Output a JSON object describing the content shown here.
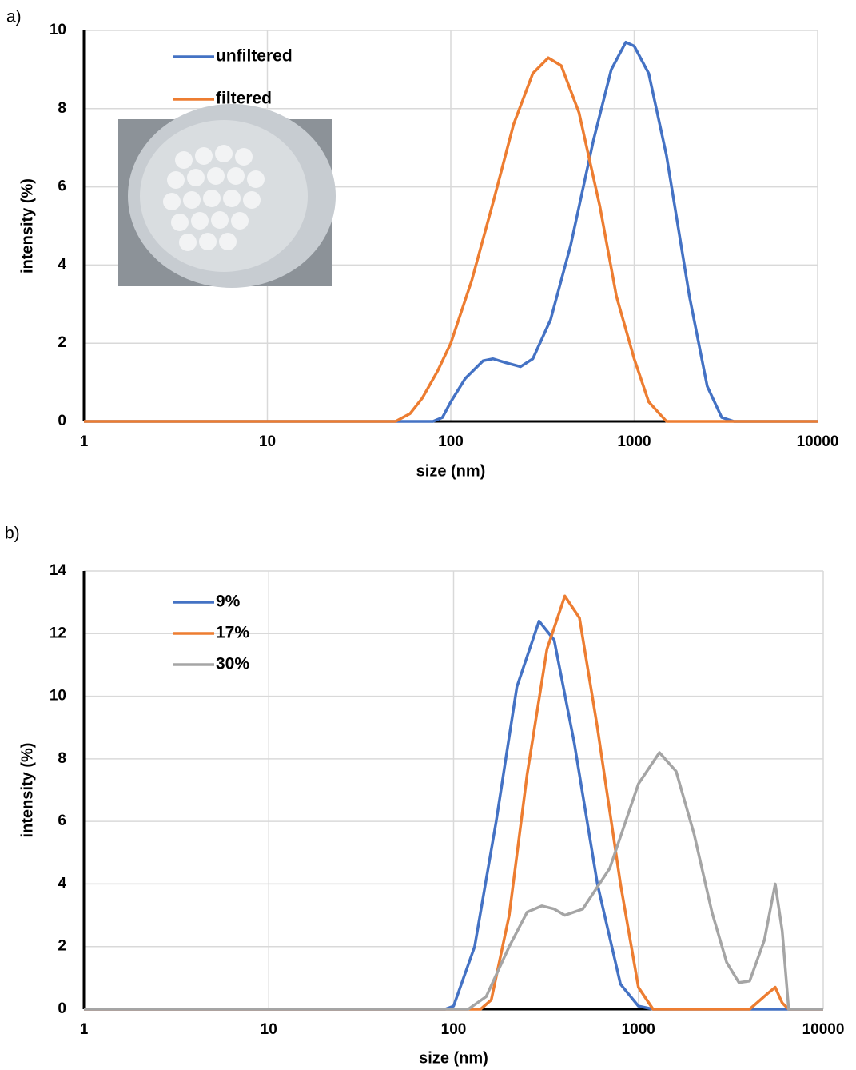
{
  "chart_data": [
    {
      "type": "line",
      "panel": "a)",
      "xlabel": "size (nm)",
      "ylabel": "intensity (%)",
      "xscale": "log",
      "grid": true,
      "legend": "upper left",
      "xlim": [
        1,
        10000
      ],
      "xticks": [
        1,
        10,
        100,
        1000,
        10000
      ],
      "ylim": [
        0,
        10
      ],
      "yticks": [
        0,
        2,
        4,
        6,
        8,
        10
      ],
      "series": [
        {
          "name": "unfiltered",
          "color": "#4472c4",
          "x": [
            1,
            80,
            90,
            100,
            120,
            150,
            170,
            200,
            240,
            280,
            350,
            450,
            600,
            750,
            900,
            1000,
            1200,
            1500,
            2000,
            2500,
            3000,
            3500,
            10000
          ],
          "values": [
            0,
            0,
            0.1,
            0.5,
            1.1,
            1.55,
            1.6,
            1.5,
            1.4,
            1.6,
            2.6,
            4.5,
            7.2,
            9.0,
            9.7,
            9.6,
            8.9,
            6.8,
            3.2,
            0.9,
            0.1,
            0,
            0
          ]
        },
        {
          "name": "filtered",
          "color": "#ed7d31",
          "x": [
            1,
            50,
            60,
            70,
            85,
            100,
            130,
            170,
            220,
            280,
            340,
            400,
            500,
            650,
            800,
            1000,
            1200,
            1500,
            10000
          ],
          "values": [
            0,
            0,
            0.2,
            0.6,
            1.3,
            2.0,
            3.6,
            5.6,
            7.6,
            8.9,
            9.3,
            9.1,
            7.9,
            5.5,
            3.2,
            1.6,
            0.5,
            0,
            0
          ]
        }
      ]
    },
    {
      "type": "line",
      "panel": "b)",
      "xlabel": "size (nm)",
      "ylabel": "intensity (%)",
      "xscale": "log",
      "grid": true,
      "legend": "upper left",
      "xlim": [
        1,
        10000
      ],
      "xticks": [
        1,
        10,
        100,
        1000,
        10000
      ],
      "ylim": [
        0,
        14
      ],
      "yticks": [
        0,
        2,
        4,
        6,
        8,
        10,
        12,
        14
      ],
      "series": [
        {
          "name": "9%",
          "color": "#4472c4",
          "x": [
            1,
            90,
            100,
            130,
            170,
            220,
            290,
            350,
            450,
            600,
            800,
            1000,
            1200,
            10000
          ],
          "values": [
            0,
            0,
            0.1,
            2,
            6,
            10.3,
            12.4,
            11.8,
            8.5,
            4,
            0.8,
            0.1,
            0,
            0
          ]
        },
        {
          "name": "17%",
          "color": "#ed7d31",
          "x": [
            1,
            140,
            160,
            200,
            250,
            320,
            400,
            480,
            600,
            800,
            1000,
            1200,
            4000,
            5000,
            5500,
            6000,
            6500,
            10000
          ],
          "values": [
            0,
            0,
            0.3,
            3,
            7.5,
            11.5,
            13.2,
            12.5,
            9,
            4,
            0.7,
            0,
            0,
            0.5,
            0.7,
            0.2,
            0,
            0
          ]
        },
        {
          "name": "30%",
          "color": "#a5a5a5",
          "x": [
            1,
            120,
            150,
            200,
            250,
            300,
            350,
            400,
            500,
            700,
            1000,
            1300,
            1600,
            2000,
            2500,
            3000,
            3500,
            4000,
            4800,
            5500,
            6000,
            6500,
            10000
          ],
          "values": [
            0,
            0,
            0.4,
            2,
            3.1,
            3.3,
            3.2,
            3,
            3.2,
            4.5,
            7.2,
            8.2,
            7.6,
            5.6,
            3.1,
            1.5,
            0.85,
            0.9,
            2.2,
            4.0,
            2.5,
            0,
            0
          ]
        }
      ]
    }
  ]
}
